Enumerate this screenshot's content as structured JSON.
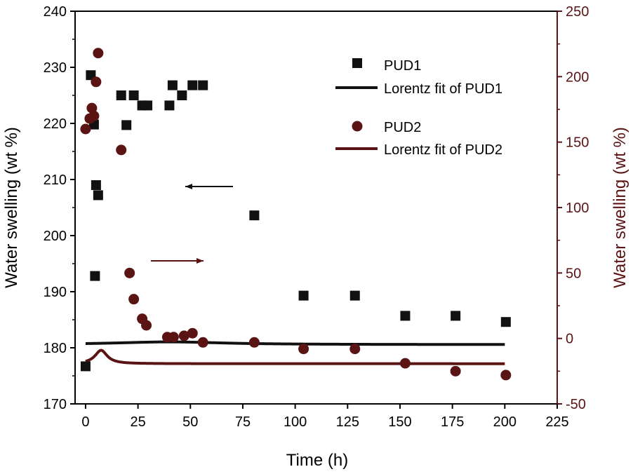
{
  "chart_data": {
    "type": "scatter",
    "title": "",
    "xlabel": "Time (h)",
    "ylabel_left": "Water swelling (wt %)",
    "ylabel_right": "Water swelling (wt %)",
    "xlim": [
      -5,
      225
    ],
    "xticks": [
      0,
      25,
      50,
      75,
      100,
      125,
      150,
      175,
      200,
      225
    ],
    "ylim_left": [
      170,
      240
    ],
    "yticks_left": [
      170,
      180,
      190,
      200,
      210,
      220,
      230,
      240
    ],
    "ylim_right": [
      -50,
      250
    ],
    "yticks_right": [
      -50,
      0,
      50,
      100,
      150,
      200,
      250
    ],
    "colors": {
      "pud1": "#111111",
      "pud2": "#5a1414"
    },
    "series": [
      {
        "name": "PUD1",
        "axis": "left",
        "marker": "square",
        "points": [
          [
            0,
            176.7
          ],
          [
            2.5,
            228.6
          ],
          [
            4,
            219.8
          ],
          [
            4.5,
            192.8
          ],
          [
            5,
            209.0
          ],
          [
            6,
            207.2
          ],
          [
            17,
            225.0
          ],
          [
            19.5,
            219.7
          ],
          [
            23,
            225.0
          ],
          [
            27,
            223.2
          ],
          [
            29.5,
            223.2
          ],
          [
            40,
            223.2
          ],
          [
            41.5,
            226.8
          ],
          [
            46,
            225.0
          ],
          [
            51,
            226.8
          ],
          [
            56,
            226.8
          ],
          [
            80.5,
            203.6
          ],
          [
            104,
            189.3
          ],
          [
            128.5,
            189.3
          ],
          [
            152.5,
            185.7
          ],
          [
            176.5,
            185.7
          ],
          [
            200.5,
            184.6
          ]
        ]
      },
      {
        "name": "PUD2",
        "axis": "right",
        "marker": "circle",
        "points": [
          [
            0,
            160
          ],
          [
            2,
            168
          ],
          [
            3,
            176
          ],
          [
            4,
            170
          ],
          [
            5,
            196
          ],
          [
            6,
            218
          ],
          [
            17,
            144
          ],
          [
            21,
            50
          ],
          [
            23,
            30
          ],
          [
            27,
            15
          ],
          [
            29,
            10
          ],
          [
            39,
            1
          ],
          [
            42,
            1
          ],
          [
            47,
            2
          ],
          [
            51,
            4
          ],
          [
            56,
            -3
          ],
          [
            80.5,
            -3
          ],
          [
            104,
            -8
          ],
          [
            128.5,
            -8
          ],
          [
            152.5,
            -19
          ],
          [
            176.5,
            -25
          ],
          [
            200.5,
            -28
          ]
        ]
      }
    ],
    "fits": [
      {
        "name": "Lorentz fit of PUD1",
        "axis": "left",
        "y0": 180.57,
        "A": 47.7,
        "xc": 40,
        "w": 63
      },
      {
        "name": "Lorentz fit of PUD2",
        "axis": "right",
        "y0": -19.3,
        "A": 113.1,
        "xc": 7.4,
        "w": 7.0,
        "x_start": 0,
        "x_end": 200
      }
    ],
    "annotations": [
      {
        "type": "arrow",
        "direction": "left",
        "meaning": "PUD1 refers to left axis"
      },
      {
        "type": "arrow",
        "direction": "right",
        "meaning": "PUD2 refers to right axis"
      }
    ],
    "legend": {
      "placement": "top-right",
      "entries": [
        "PUD1",
        "Lorentz fit of PUD1",
        "PUD2",
        "Lorentz fit of PUD2"
      ]
    }
  }
}
